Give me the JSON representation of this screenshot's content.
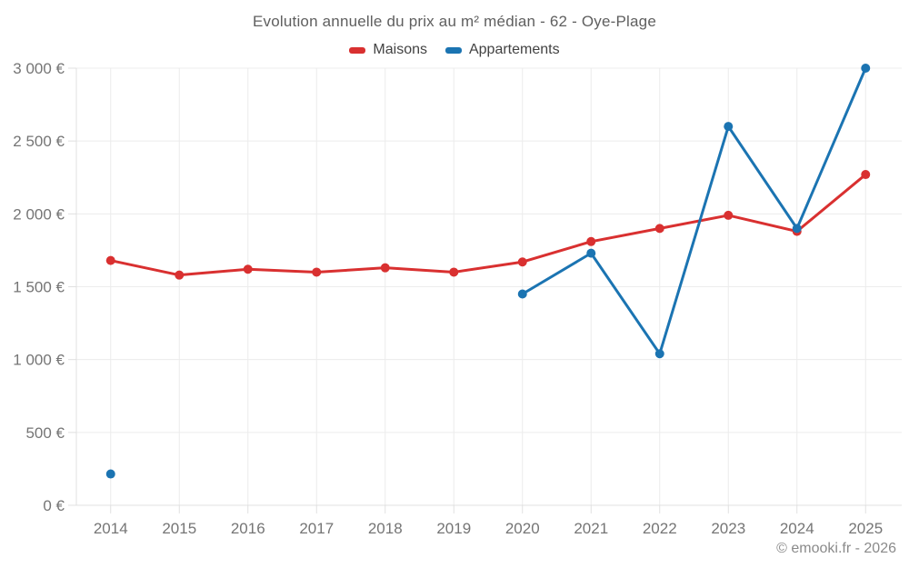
{
  "chart": {
    "title": "Evolution annuelle du prix au m² médian - 62 - Oye-Plage",
    "copyright": "© emooki.fr - 2026"
  },
  "chart_data": {
    "type": "line",
    "title": "Evolution annuelle du prix au m² médian - 62 - Oye-Plage",
    "categories": [
      "2014",
      "2015",
      "2016",
      "2017",
      "2018",
      "2019",
      "2020",
      "2021",
      "2022",
      "2023",
      "2024",
      "2025"
    ],
    "series": [
      {
        "name": "Maisons",
        "color": "#d93030",
        "values": [
          1680,
          1580,
          1620,
          1600,
          1630,
          1600,
          1670,
          1810,
          1900,
          1990,
          1880,
          2270
        ]
      },
      {
        "name": "Appartements",
        "color": "#1b74b2",
        "values": [
          215,
          null,
          null,
          null,
          null,
          null,
          1450,
          1730,
          1040,
          2600,
          1900,
          3000
        ]
      }
    ],
    "xlabel": "",
    "ylabel": "",
    "ylim": [
      0,
      3000
    ],
    "ytick_step": 500,
    "ytick_labels": [
      "0 €",
      "500 €",
      "1 000 €",
      "1 500 €",
      "2 000 €",
      "2 500 €",
      "3 000 €"
    ],
    "grid": true,
    "legend_position": "top",
    "grid_color": "#ececec",
    "axis_color": "#e0e0e0",
    "tick_label_color": "#757575"
  }
}
